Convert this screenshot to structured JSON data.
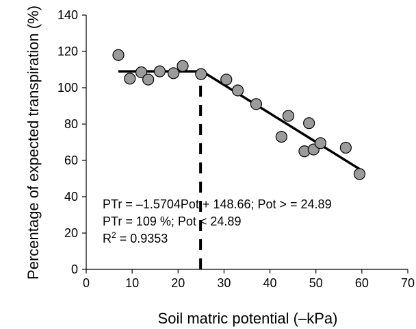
{
  "chart_data": {
    "type": "scatter",
    "xlabel": "Soil matric potential (–kPa)",
    "ylabel": "Percentage of expected transpiration (%)",
    "xlim": [
      0,
      70
    ],
    "ylim": [
      0,
      140
    ],
    "xticks": [
      0,
      10,
      20,
      30,
      40,
      50,
      60,
      70
    ],
    "yticks": [
      0,
      20,
      40,
      60,
      80,
      100,
      120,
      140
    ],
    "grid": false,
    "legend": "none",
    "series": [
      {
        "x": [
          7,
          9.5,
          12,
          13.5,
          16,
          19,
          21,
          25,
          30.5,
          33,
          37,
          42.5,
          44,
          47.5,
          48.5,
          49.5,
          51,
          56.5,
          59.5
        ],
        "y": [
          118,
          105,
          108.5,
          104.5,
          109,
          108,
          112,
          107.5,
          104.5,
          98.5,
          91,
          73,
          84.5,
          65,
          80.5,
          66,
          69.5,
          67,
          52.5
        ],
        "marker_color": "#9b9b9b"
      }
    ],
    "fit_lines": [
      {
        "x": [
          7,
          24.89
        ],
        "y": [
          109,
          109
        ],
        "style": "solid"
      },
      {
        "x": [
          24.89,
          59.5
        ],
        "y": [
          109.57,
          55.22
        ],
        "style": "solid"
      }
    ],
    "threshold_line": {
      "x": 24.89,
      "y_from": 0,
      "y_to": 105,
      "style": "dashed"
    },
    "annotations": [
      "PTr = ‒1.5704Pot + 148.66; Pot > = 24.89",
      "PTr = 109 %; Pot < 24.89"
    ],
    "r2_label": {
      "base": "R",
      "sup": "2",
      "rest": " = 0.9353"
    }
  }
}
